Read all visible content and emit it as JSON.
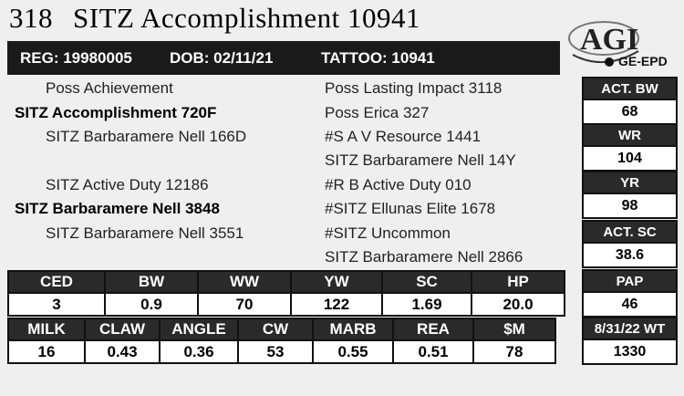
{
  "title": {
    "lot": "318",
    "name": "SITZ Accomplishment 10941"
  },
  "logo": {
    "brand": "AGI",
    "sub": "GE-EPD"
  },
  "ids": {
    "reg": "REG: 19980005",
    "dob": "DOB: 02/11/21",
    "tattoo": "TATTOO: 10941"
  },
  "pedigree": {
    "sire_sire": "Poss Achievement",
    "sire": "SITZ Accomplishment 720F",
    "sire_dam": "SITZ Barbaramere Nell 166D",
    "dam_sire": "SITZ Active Duty 12186",
    "dam": "SITZ Barbaramere Nell 3848",
    "dam_dam": "SITZ Barbaramere Nell 3551",
    "right": [
      "Poss Lasting Impact 3118",
      "Poss Erica 327",
      "#S A V Resource 1441",
      "SITZ Barbaramere Nell 14Y",
      "#R B Active Duty 010",
      "#SITZ Ellunas Elite 1678",
      "#SITZ Uncommon",
      "SITZ Barbaramere Nell 2866"
    ]
  },
  "side_stats": [
    {
      "label": "ACT. BW",
      "value": "68"
    },
    {
      "label": "WR",
      "value": "104"
    },
    {
      "label": "YR",
      "value": "98"
    },
    {
      "label": "ACT. SC",
      "value": "38.6"
    },
    {
      "label": "PAP",
      "value": "46"
    },
    {
      "label": "8/31/22 WT",
      "value": "1330"
    }
  ],
  "epd_row1": {
    "labels": [
      "CED",
      "BW",
      "WW",
      "YW",
      "SC",
      "HP"
    ],
    "values": [
      "3",
      "0.9",
      "70",
      "122",
      "1.69",
      "20.0"
    ]
  },
  "epd_row2": {
    "labels": [
      "MILK",
      "CLAW",
      "ANGLE",
      "CW",
      "MARB",
      "REA",
      "$M"
    ],
    "values": [
      "16",
      "0.43",
      "0.36",
      "53",
      "0.55",
      "0.51",
      "78"
    ]
  }
}
